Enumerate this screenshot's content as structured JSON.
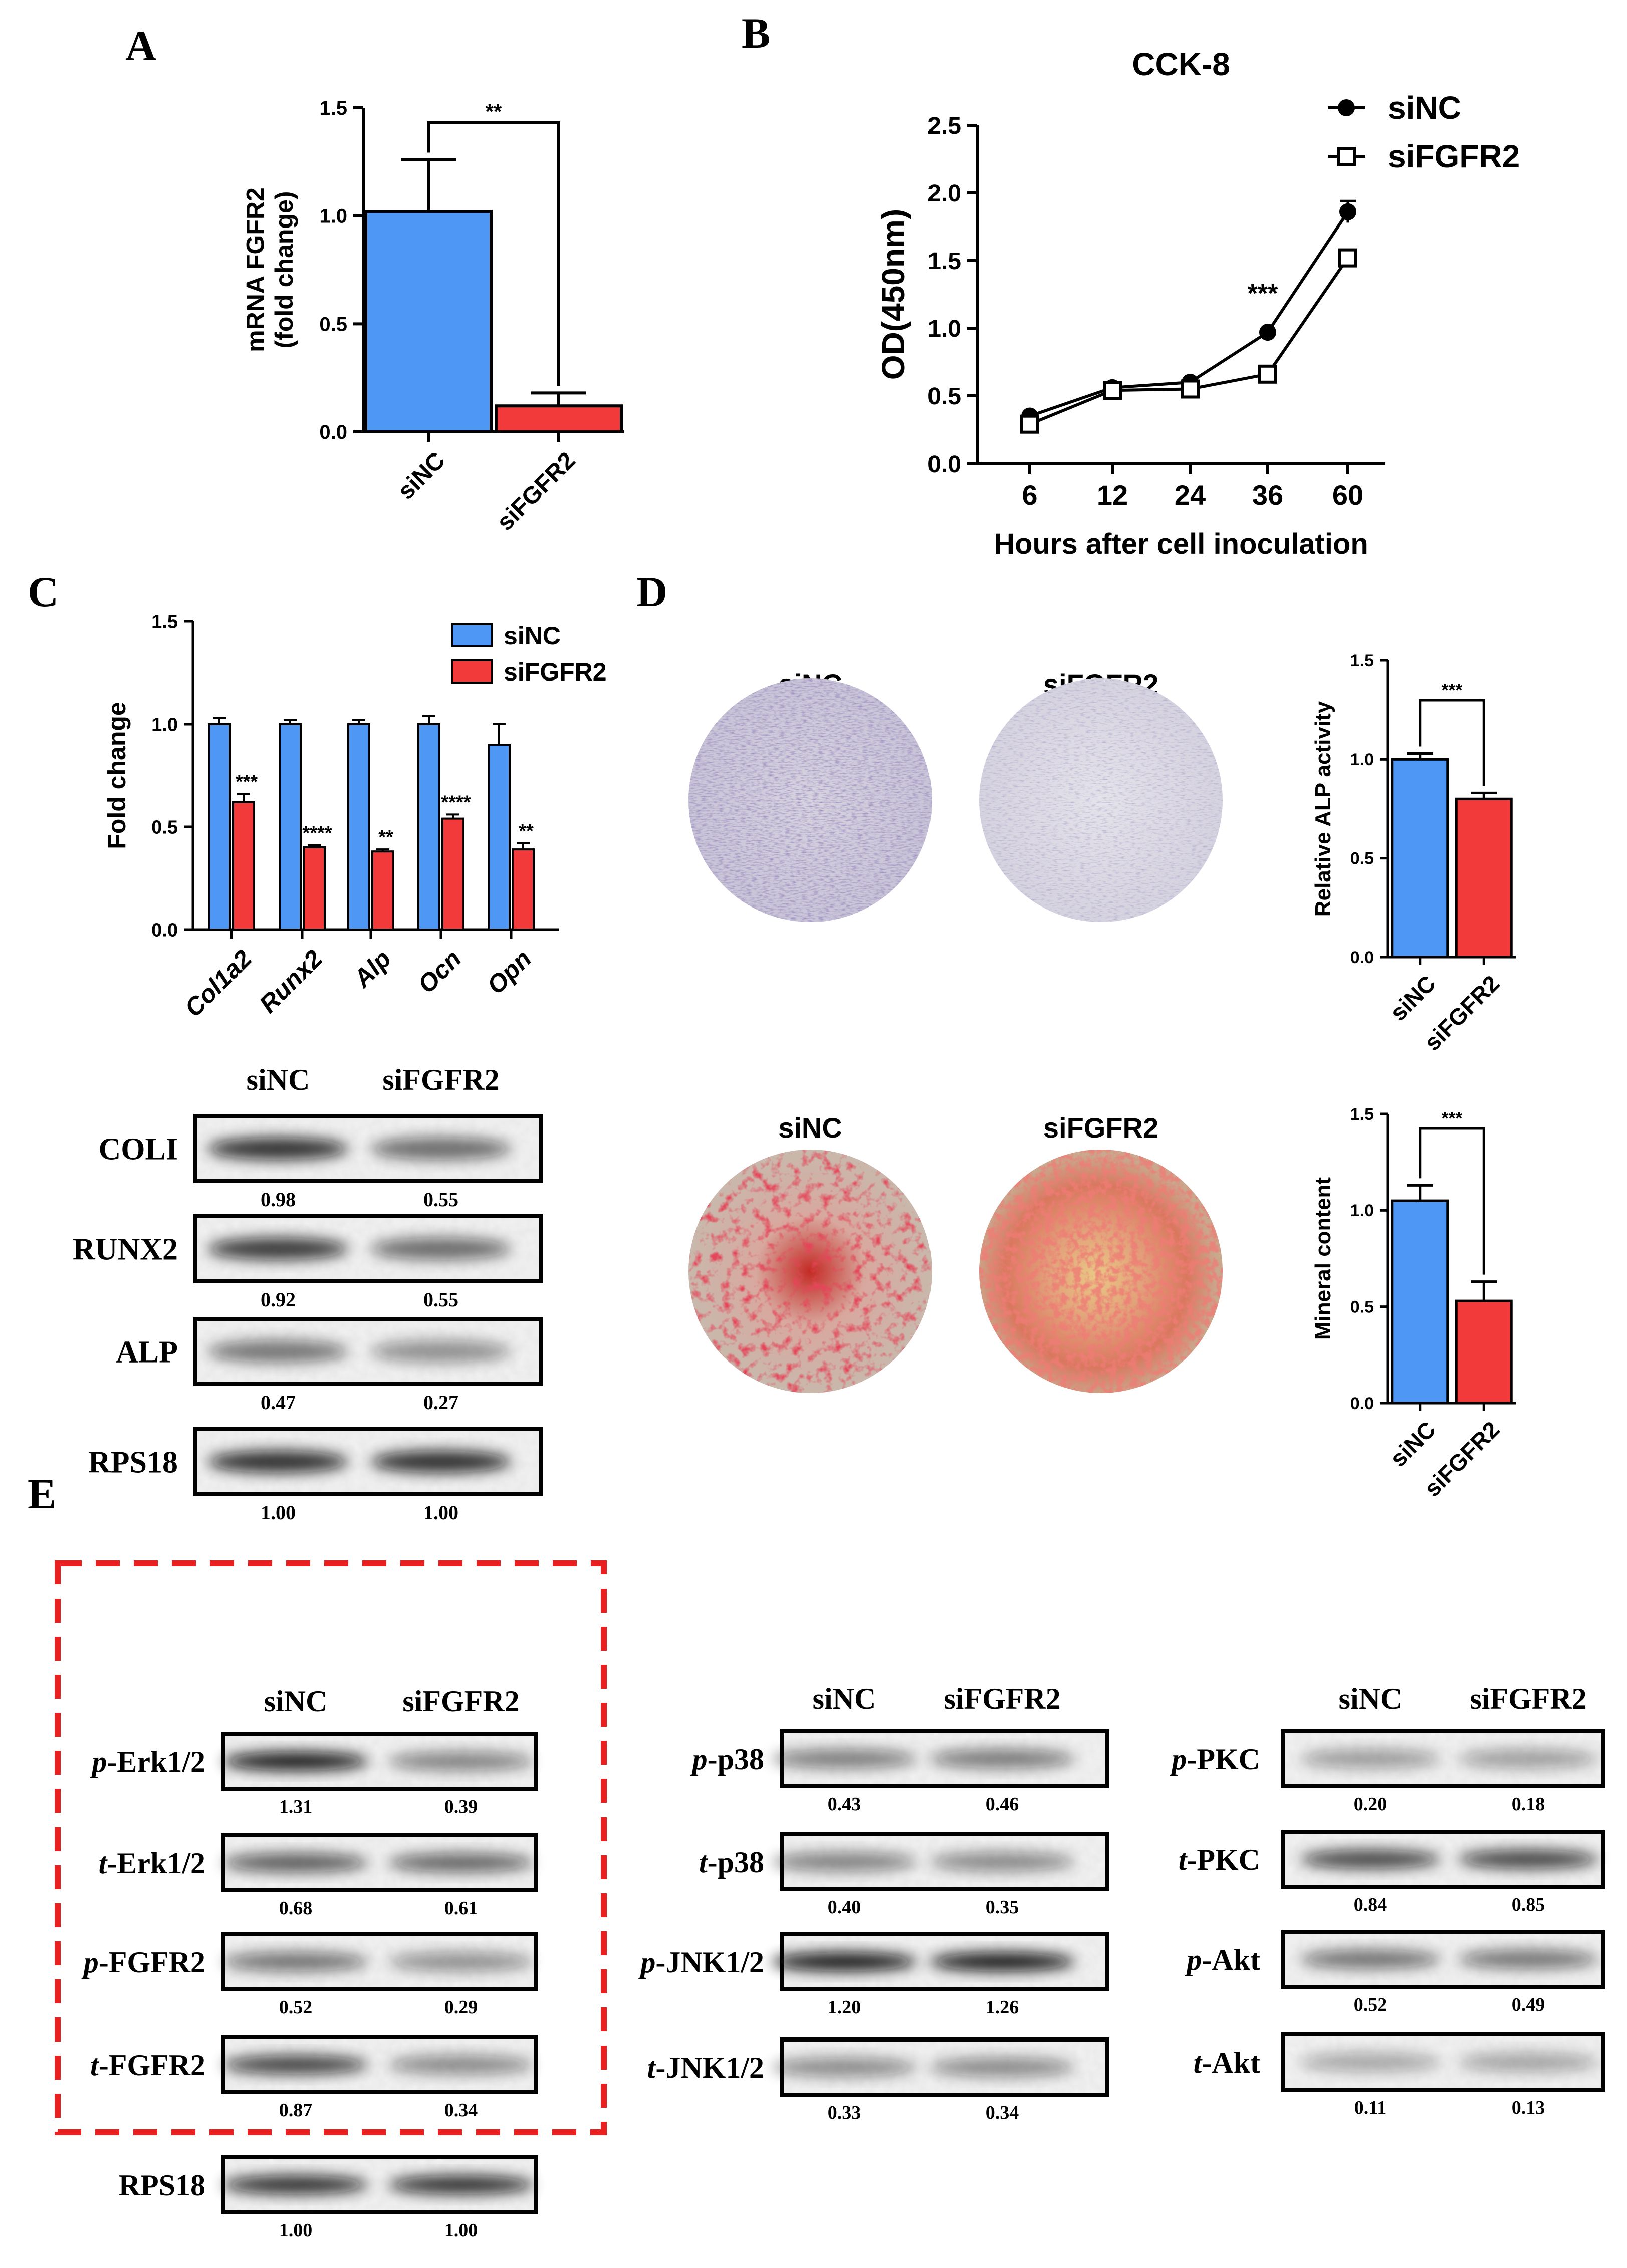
{
  "colors": {
    "siNC": "#4f97f5",
    "siFGFR2": "#f23a3a",
    "dashed_box": "#e82020",
    "alp_stain": "#5e4d8c",
    "ars_stain": "#c8141c"
  },
  "panels": {
    "A": {
      "label": "A"
    },
    "B": {
      "label": "B"
    },
    "C": {
      "label": "C"
    },
    "D": {
      "label": "D"
    },
    "E": {
      "label": "E"
    }
  },
  "chart_data": [
    {
      "id": "A",
      "type": "bar",
      "categories": [
        "siNC",
        "siFGFR2"
      ],
      "values": [
        1.02,
        0.12
      ],
      "errors": [
        0.24,
        0.06
      ],
      "colors": [
        "#4f97f5",
        "#f23a3a"
      ],
      "ylabel": "mRNA FGFR2\n(fold change)",
      "ylim": [
        0,
        1.5
      ],
      "yticks": [
        "0.0",
        "0.5",
        "1.0",
        "1.5"
      ],
      "significance": "**"
    },
    {
      "id": "B",
      "type": "line",
      "title": "CCK-8",
      "x": [
        "6",
        "12",
        "24",
        "36",
        "60"
      ],
      "series": [
        {
          "name": "siNC",
          "marker": "filled-circle",
          "values": [
            0.35,
            0.56,
            0.6,
            0.97,
            1.86
          ],
          "errors": [
            0.02,
            0.02,
            0.02,
            0.02,
            0.08
          ]
        },
        {
          "name": "siFGFR2",
          "marker": "open-square",
          "values": [
            0.29,
            0.54,
            0.55,
            0.66,
            1.52
          ],
          "errors": [
            0.02,
            0.02,
            0.02,
            0.02,
            0.04
          ]
        }
      ],
      "xlabel": "Hours after cell inoculation",
      "ylabel": "OD(450nm)",
      "ylim": [
        0,
        2.5
      ],
      "yticks": [
        "0.0",
        "0.5",
        "1.0",
        "1.5",
        "2.0",
        "2.5"
      ],
      "significance": [
        {
          "x": "36",
          "label": "***"
        }
      ]
    },
    {
      "id": "C",
      "type": "bar",
      "categories": [
        "Col1a2",
        "Runx2",
        "Alp",
        "Ocn",
        "Opn"
      ],
      "series": [
        {
          "name": "siNC",
          "values": [
            1.0,
            1.0,
            1.0,
            1.0,
            0.9
          ],
          "errors": [
            0.03,
            0.02,
            0.02,
            0.04,
            0.1
          ]
        },
        {
          "name": "siFGFR2",
          "values": [
            0.62,
            0.4,
            0.38,
            0.54,
            0.39
          ],
          "errors": [
            0.04,
            0.01,
            0.01,
            0.02,
            0.03
          ]
        }
      ],
      "ylabel": "Fold change",
      "ylim": [
        0,
        1.5
      ],
      "yticks": [
        "0.0",
        "0.5",
        "1.0",
        "1.5"
      ],
      "significance": [
        "***",
        "****",
        "**",
        "****",
        "**"
      ],
      "legend_position": "top-right"
    },
    {
      "id": "D-ALP",
      "type": "bar",
      "categories": [
        "siNC",
        "siFGFR2"
      ],
      "values": [
        1.0,
        0.8
      ],
      "errors": [
        0.03,
        0.03
      ],
      "colors": [
        "#4f97f5",
        "#f23a3a"
      ],
      "ylabel": "Relative ALP activity",
      "ylim": [
        0,
        1.5
      ],
      "yticks": [
        "0.0",
        "0.5",
        "1.0",
        "1.5"
      ],
      "significance": "***"
    },
    {
      "id": "D-Mineral",
      "type": "bar",
      "categories": [
        "siNC",
        "siFGFR2"
      ],
      "values": [
        1.05,
        0.53
      ],
      "errors": [
        0.08,
        0.1
      ],
      "colors": [
        "#4f97f5",
        "#f23a3a"
      ],
      "ylabel": "Mineral content",
      "ylim": [
        0,
        1.5
      ],
      "yticks": [
        "0.0",
        "0.5",
        "1.0",
        "1.5"
      ],
      "significance": "***"
    }
  ],
  "stain_images": {
    "top_labels": [
      "siNC",
      "siFGFR2"
    ],
    "bottom_labels": [
      "siNC",
      "siFGFR2"
    ]
  },
  "blot_c": {
    "columns": [
      "siNC",
      "siFGFR2"
    ],
    "rows": [
      {
        "label": "COLI",
        "values": [
          "0.98",
          "0.55"
        ]
      },
      {
        "label": "RUNX2",
        "values": [
          "0.92",
          "0.55"
        ]
      },
      {
        "label": "ALP",
        "values": [
          "0.47",
          "0.27"
        ]
      },
      {
        "label": "RPS18",
        "values": [
          "1.00",
          "1.00"
        ]
      }
    ]
  },
  "blot_e1": {
    "columns": [
      "siNC",
      "siFGFR2"
    ],
    "rows": [
      {
        "prefix": "p",
        "name": "-Erk1/2",
        "values": [
          "1.31",
          "0.39"
        ]
      },
      {
        "prefix": "t",
        "name": "-Erk1/2",
        "values": [
          "0.68",
          "0.61"
        ]
      },
      {
        "prefix": "p",
        "name": "-FGFR2",
        "values": [
          "0.52",
          "0.29"
        ]
      },
      {
        "prefix": "t",
        "name": "-FGFR2",
        "values": [
          "0.87",
          "0.34"
        ]
      }
    ],
    "loading": {
      "prefix": "",
      "name": "RPS18",
      "values": [
        "1.00",
        "1.00"
      ]
    }
  },
  "blot_e2": {
    "columns": [
      "siNC",
      "siFGFR2"
    ],
    "rows": [
      {
        "prefix": "p",
        "name": "-p38",
        "values": [
          "0.43",
          "0.46"
        ]
      },
      {
        "prefix": "t",
        "name": "-p38",
        "values": [
          "0.40",
          "0.35"
        ]
      },
      {
        "prefix": "p",
        "name": "-JNK1/2",
        "values": [
          "1.20",
          "1.26"
        ]
      },
      {
        "prefix": "t",
        "name": "-JNK1/2",
        "values": [
          "0.33",
          "0.34"
        ]
      }
    ]
  },
  "blot_e3": {
    "columns": [
      "siNC",
      "siFGFR2"
    ],
    "rows": [
      {
        "prefix": "p",
        "name": "-PKC",
        "values": [
          "0.20",
          "0.18"
        ]
      },
      {
        "prefix": "t",
        "name": "-PKC",
        "values": [
          "0.84",
          "0.85"
        ]
      },
      {
        "prefix": "p",
        "name": "-Akt",
        "values": [
          "0.52",
          "0.49"
        ]
      },
      {
        "prefix": "t",
        "name": "-Akt",
        "values": [
          "0.11",
          "0.13"
        ]
      }
    ]
  }
}
